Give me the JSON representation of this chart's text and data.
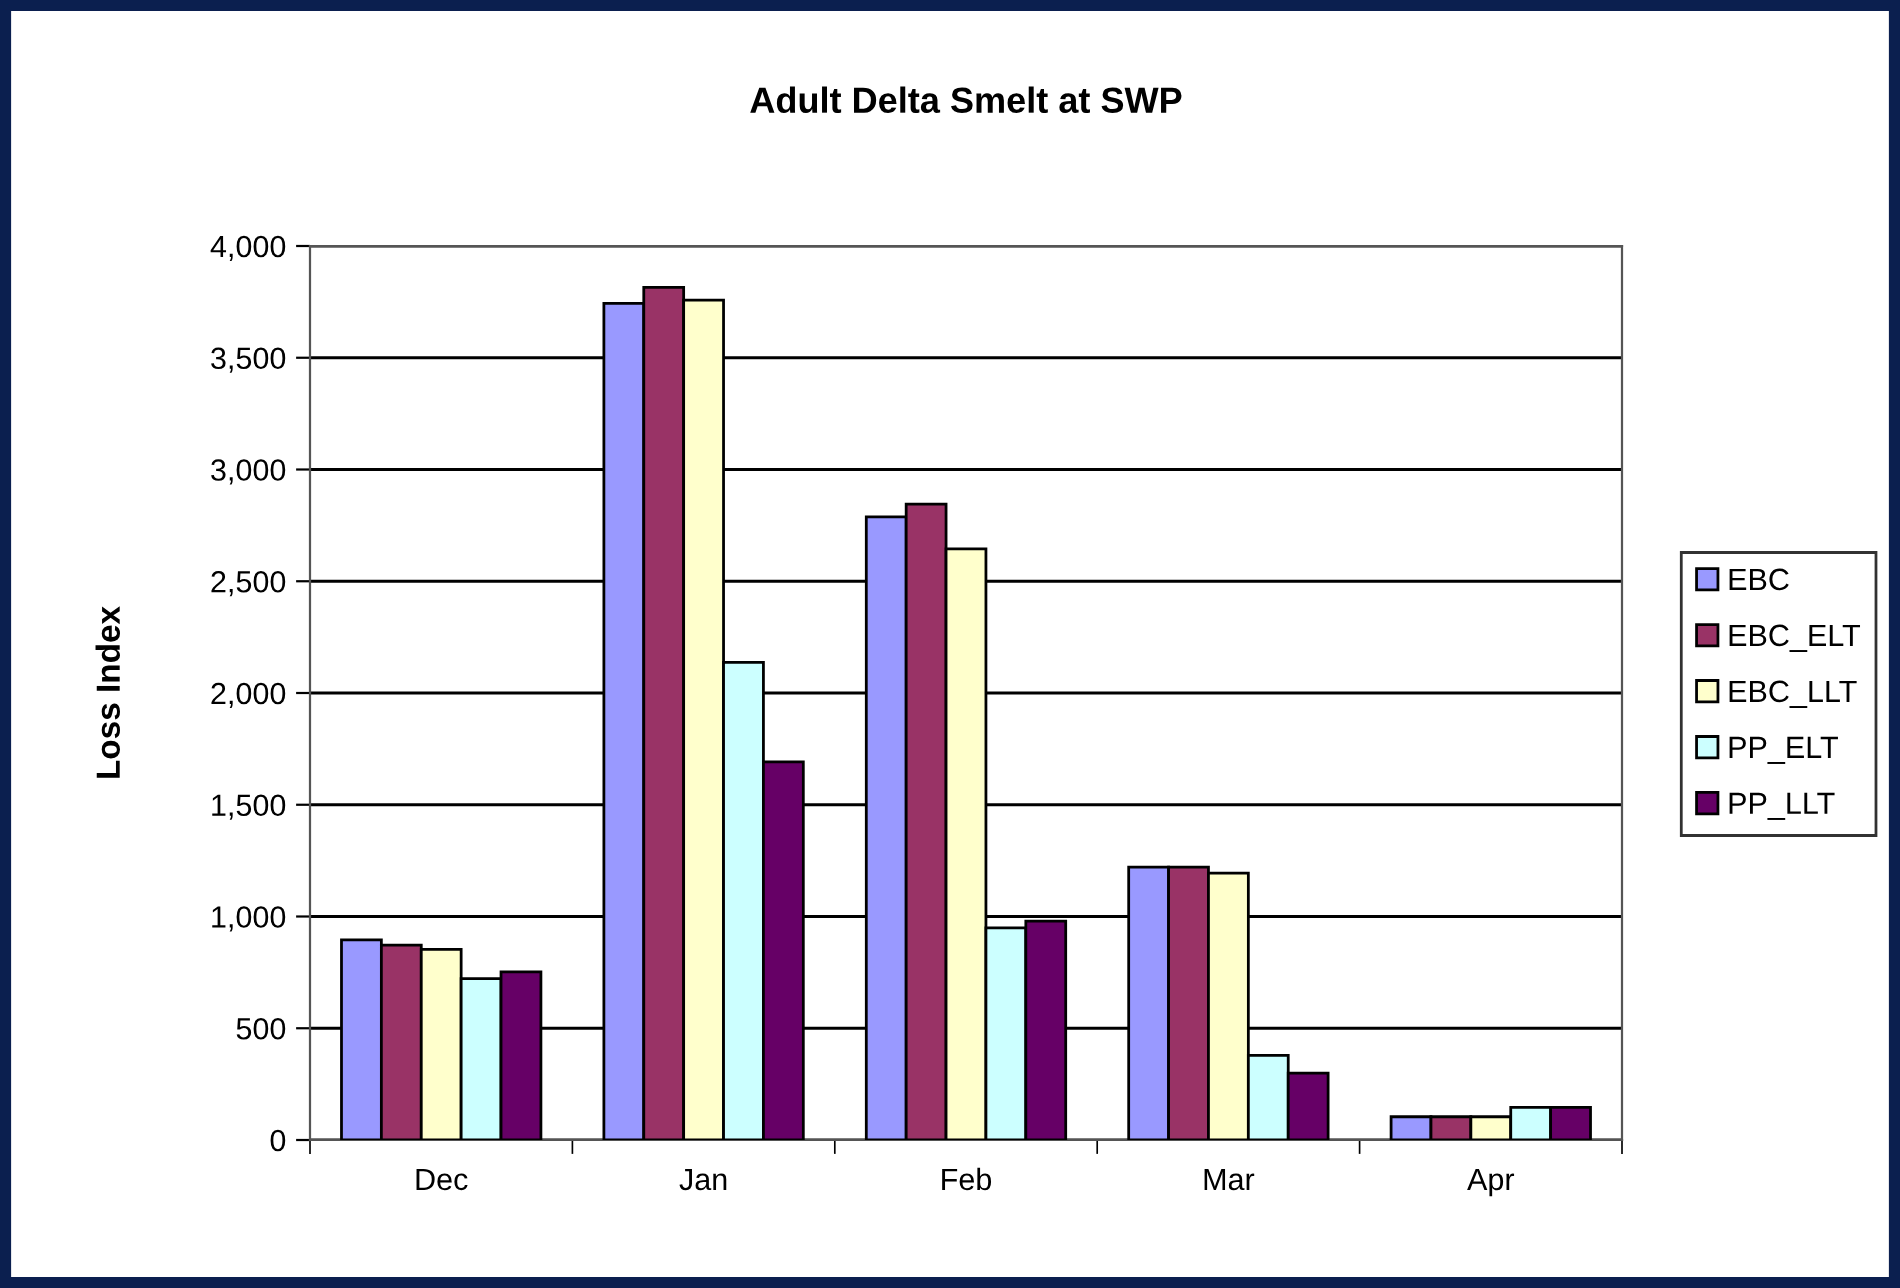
{
  "chart_data": {
    "type": "bar",
    "title": "Adult Delta Smelt at SWP",
    "ylabel": "Loss Index",
    "categories": [
      "Dec",
      "Jan",
      "Feb",
      "Mar",
      "Apr"
    ],
    "series": [
      {
        "name": "EBC",
        "color": "#9999ff",
        "values": [
          895,
          3743,
          2788,
          1221,
          104
        ]
      },
      {
        "name": "EBC_ELT",
        "color": "#993366",
        "values": [
          872,
          3815,
          2845,
          1221,
          104
        ]
      },
      {
        "name": "EBC_LLT",
        "color": "#ffffcc",
        "values": [
          853,
          3758,
          2645,
          1194,
          104
        ]
      },
      {
        "name": "PP_ELT",
        "color": "#ccffff",
        "values": [
          722,
          2137,
          949,
          379,
          146
        ]
      },
      {
        "name": "PP_LLT",
        "color": "#660066",
        "values": [
          752,
          1692,
          979,
          299,
          146
        ]
      }
    ],
    "ylim": [
      0,
      4000
    ],
    "yticks": [
      {
        "value": 0,
        "label": "0"
      },
      {
        "value": 500,
        "label": "500"
      },
      {
        "value": 1000,
        "label": "1,000"
      },
      {
        "value": 1500,
        "label": "1,500"
      },
      {
        "value": 2000,
        "label": "2,000"
      },
      {
        "value": 2500,
        "label": "2,500"
      },
      {
        "value": 3000,
        "label": "3,000"
      },
      {
        "value": 3500,
        "label": "3,500"
      },
      {
        "value": 4000,
        "label": "4,000"
      }
    ],
    "grid": "y",
    "legend": "right"
  }
}
